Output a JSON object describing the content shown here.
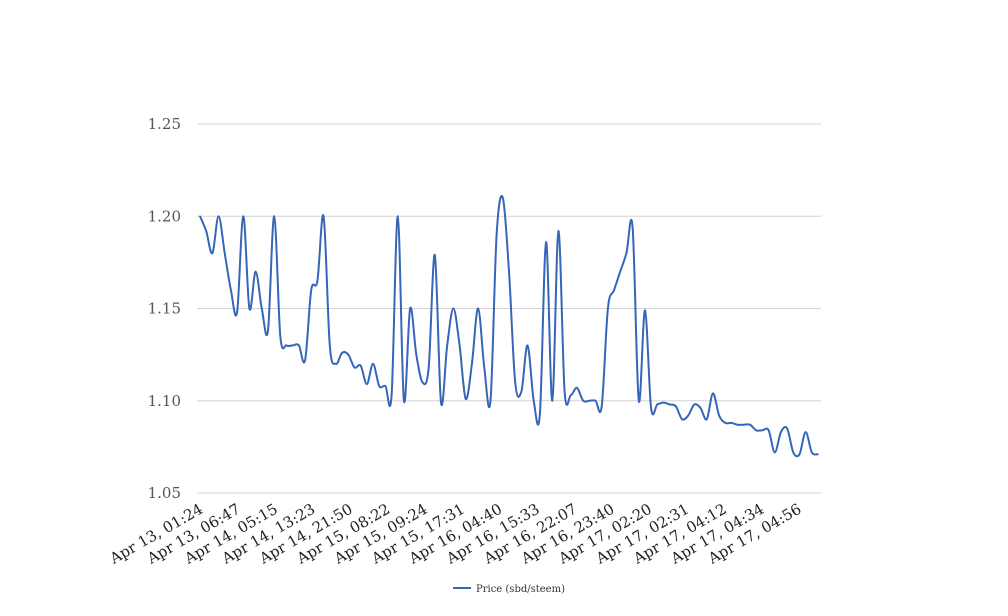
{
  "chart_data": {
    "type": "line",
    "title": "",
    "xlabel": "",
    "ylabel": "",
    "ylim": [
      1.05,
      1.25
    ],
    "y_ticks": [
      "1.05",
      "1.10",
      "1.15",
      "1.20",
      "1.25"
    ],
    "x_tick_labels": [
      "Apr 13, 01:24",
      "Apr 13, 06:47",
      "Apr 14, 05:15",
      "Apr 14, 13:23",
      "Apr 14, 21:50",
      "Apr 15, 08:22",
      "Apr 15, 09:24",
      "Apr 15, 17:31",
      "Apr 16, 04:40",
      "Apr 16, 15:33",
      "Apr 16, 22:07",
      "Apr 16, 23:40",
      "Apr 17, 02:20",
      "Apr 17, 02:31",
      "Apr 17, 04:12",
      "Apr 17, 04:34",
      "Apr 17, 04:56"
    ],
    "grid": true,
    "legend_position": "bottom-center",
    "series": [
      {
        "name": "Price (sbd/steem)",
        "color": "#3566b8",
        "values": [
          1.2,
          1.192,
          1.18,
          1.2,
          1.18,
          1.16,
          1.148,
          1.2,
          1.15,
          1.17,
          1.15,
          1.138,
          1.2,
          1.135,
          1.13,
          1.13,
          1.13,
          1.122,
          1.16,
          1.165,
          1.2,
          1.13,
          1.12,
          1.126,
          1.125,
          1.118,
          1.119,
          1.109,
          1.12,
          1.108,
          1.108,
          1.103,
          1.2,
          1.1,
          1.15,
          1.125,
          1.11,
          1.118,
          1.179,
          1.099,
          1.13,
          1.15,
          1.13,
          1.101,
          1.12,
          1.15,
          1.118,
          1.1,
          1.19,
          1.21,
          1.17,
          1.11,
          1.105,
          1.13,
          1.1,
          1.093,
          1.186,
          1.1,
          1.192,
          1.105,
          1.103,
          1.107,
          1.1,
          1.1,
          1.1,
          1.097,
          1.15,
          1.16,
          1.17,
          1.18,
          1.194,
          1.1,
          1.149,
          1.096,
          1.098,
          1.099,
          1.098,
          1.097,
          1.09,
          1.092,
          1.098,
          1.096,
          1.09,
          1.104,
          1.092,
          1.088,
          1.088,
          1.087,
          1.087,
          1.087,
          1.084,
          1.084,
          1.084,
          1.072,
          1.083,
          1.085,
          1.072,
          1.071,
          1.083,
          1.072,
          1.071
        ]
      }
    ]
  }
}
